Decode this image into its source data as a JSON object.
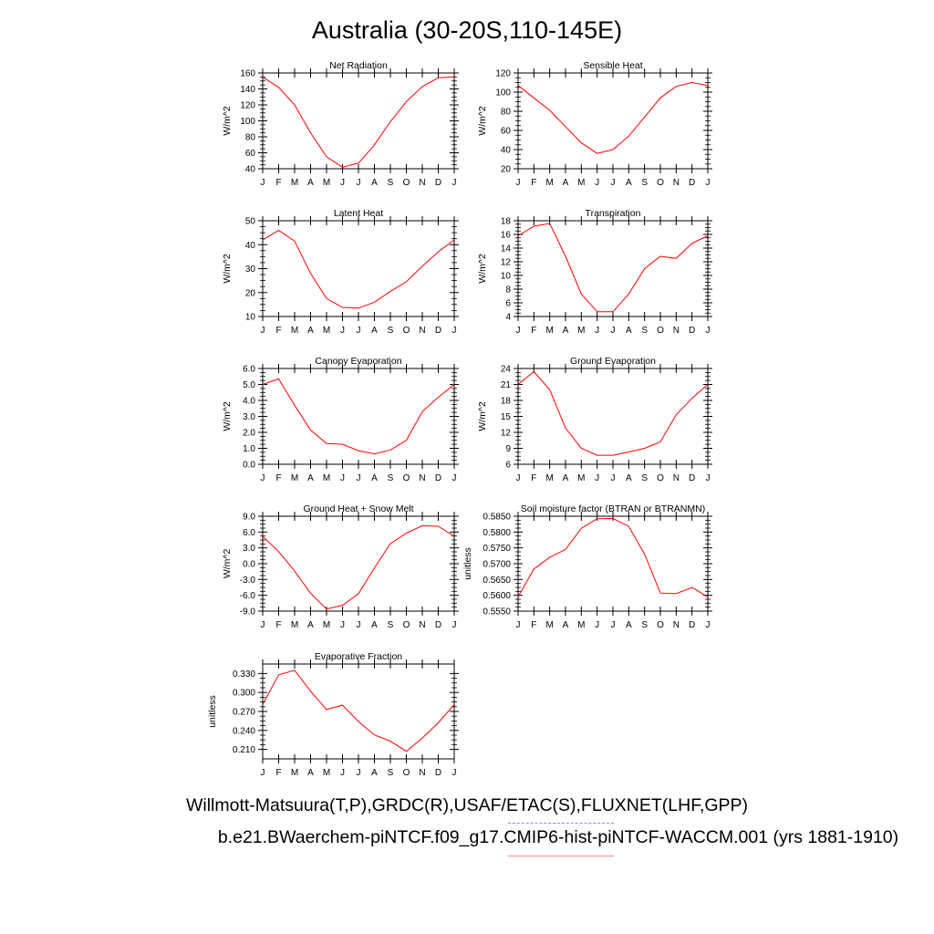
{
  "title": "Australia (30-20S,110-145E)",
  "footer": {
    "observations": "Willmott-Matsuura(T,P),GRDC(R),USAF/ETAC(S),FLUXNET(LHF,GPP)",
    "case": "b.e21.BWaerchem-piNTCF.f09_g17.CMIP6-hist-piNTCF-WACCM.001 (yrs 1881-1910)"
  },
  "colors": {
    "series": "#ff0000",
    "legend_obs": "#8c8cf0",
    "legend_case": "#f08c8c"
  },
  "chart_data": [
    {
      "type": "line",
      "title": "Net Radiation",
      "ylabel": "W/m^2",
      "xticks": [
        "J",
        "F",
        "M",
        "A",
        "M",
        "J",
        "J",
        "A",
        "S",
        "O",
        "N",
        "D",
        "J"
      ],
      "ylim": [
        40,
        160
      ],
      "yticks": [
        "40",
        "60",
        "80",
        "100",
        "120",
        "140",
        "160"
      ],
      "values": [
        155,
        142,
        120,
        85,
        55,
        42,
        47,
        70,
        99,
        124,
        143,
        154,
        155
      ]
    },
    {
      "type": "line",
      "title": "Sensible Heat",
      "ylabel": "W/m^2",
      "xticks": [
        "J",
        "F",
        "M",
        "A",
        "M",
        "J",
        "J",
        "A",
        "S",
        "O",
        "N",
        "D",
        "J"
      ],
      "ylim": [
        20,
        120
      ],
      "yticks": [
        "20",
        "40",
        "60",
        "80",
        "100",
        "120"
      ],
      "values": [
        107,
        94,
        81,
        64,
        47,
        36,
        40,
        54,
        74,
        94,
        106,
        110,
        107
      ]
    },
    {
      "type": "line",
      "title": "Latent Heat",
      "ylabel": "W/m^2",
      "xticks": [
        "J",
        "F",
        "M",
        "A",
        "M",
        "J",
        "J",
        "A",
        "S",
        "O",
        "N",
        "D",
        "J"
      ],
      "ylim": [
        10,
        50
      ],
      "yticks": [
        "10",
        "20",
        "30",
        "40",
        "50"
      ],
      "values": [
        42,
        46,
        41.5,
        28,
        17.5,
        13.8,
        13.5,
        16,
        20.5,
        24.5,
        31,
        37,
        42
      ]
    },
    {
      "type": "line",
      "title": "Transpiration",
      "ylabel": "W/m^2",
      "xticks": [
        "J",
        "F",
        "M",
        "A",
        "M",
        "J",
        "J",
        "A",
        "S",
        "O",
        "N",
        "D",
        "J"
      ],
      "ylim": [
        4,
        18
      ],
      "yticks": [
        "4",
        "6",
        "8",
        "10",
        "12",
        "14",
        "16",
        "18"
      ],
      "values": [
        15.8,
        17.2,
        17.6,
        12.8,
        7.3,
        4.7,
        4.7,
        7.3,
        11,
        12.8,
        12.5,
        14.7,
        15.8
      ]
    },
    {
      "type": "line",
      "title": "Canopy Evaporation",
      "ylabel": "W/m^2",
      "xticks": [
        "J",
        "F",
        "M",
        "A",
        "M",
        "J",
        "J",
        "A",
        "S",
        "O",
        "N",
        "D",
        "J"
      ],
      "ylim": [
        0,
        6
      ],
      "yticks": [
        "0.0",
        "1.0",
        "2.0",
        "3.0",
        "4.0",
        "5.0",
        "6.0"
      ],
      "values": [
        5.0,
        5.35,
        3.7,
        2.15,
        1.3,
        1.25,
        0.85,
        0.65,
        0.9,
        1.5,
        3.3,
        4.2,
        5.0
      ]
    },
    {
      "type": "line",
      "title": "Ground Evaporation",
      "ylabel": "W/m^2",
      "xticks": [
        "J",
        "F",
        "M",
        "A",
        "M",
        "J",
        "J",
        "A",
        "S",
        "O",
        "N",
        "D",
        "J"
      ],
      "ylim": [
        6,
        24
      ],
      "yticks": [
        "6",
        "9",
        "12",
        "15",
        "18",
        "21",
        "24"
      ],
      "values": [
        21,
        23.4,
        20,
        12.8,
        9,
        7.7,
        7.7,
        8.3,
        9,
        10.2,
        15.3,
        18.4,
        21
      ]
    },
    {
      "type": "line",
      "title": "Ground Heat + Snow Melt",
      "ylabel": "W/m^2",
      "xticks": [
        "J",
        "F",
        "M",
        "A",
        "M",
        "J",
        "J",
        "A",
        "S",
        "O",
        "N",
        "D",
        "J"
      ],
      "ylim": [
        -9,
        9
      ],
      "yticks": [
        "-9.0",
        "-6.0",
        "-3.0",
        "0.0",
        "3.0",
        "6.0",
        "9.0"
      ],
      "values": [
        5.2,
        2.3,
        -1.4,
        -5.6,
        -8.6,
        -7.9,
        -5.7,
        -0.8,
        3.8,
        5.8,
        7.2,
        7.1,
        5.2
      ]
    },
    {
      "type": "line",
      "title": "Soil moisture factor (BTRAN or BTRANMN)",
      "ylabel": "unitless",
      "xticks": [
        "J",
        "F",
        "M",
        "A",
        "M",
        "J",
        "J",
        "A",
        "S",
        "O",
        "N",
        "D",
        "J"
      ],
      "ylim": [
        0.555,
        0.585
      ],
      "yticks": [
        "0.5550",
        "0.5600",
        "0.5650",
        "0.5700",
        "0.5750",
        "0.5800",
        "0.5850"
      ],
      "values": [
        0.5595,
        0.5683,
        0.572,
        0.5745,
        0.5812,
        0.5842,
        0.5843,
        0.5818,
        0.573,
        0.5607,
        0.5605,
        0.5625,
        0.5595
      ]
    },
    {
      "type": "line",
      "title": "Evaporative Fraction",
      "ylabel": "unitless",
      "xticks": [
        "J",
        "F",
        "M",
        "A",
        "M",
        "J",
        "J",
        "A",
        "S",
        "O",
        "N",
        "D",
        "J"
      ],
      "ylim": [
        0.195,
        0.345
      ],
      "yticks": [
        "0.210",
        "0.240",
        "0.270",
        "0.300",
        "0.330"
      ],
      "values": [
        0.281,
        0.328,
        0.335,
        0.302,
        0.273,
        0.28,
        0.254,
        0.233,
        0.223,
        0.207,
        0.228,
        0.252,
        0.281
      ]
    }
  ]
}
